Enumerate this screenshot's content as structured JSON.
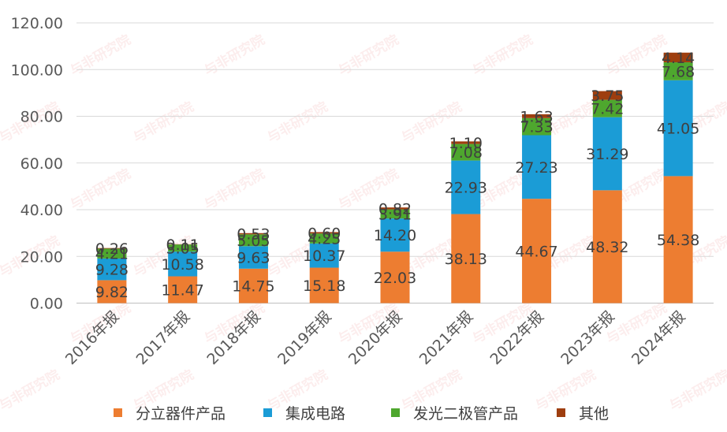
{
  "chart_data": {
    "type": "bar",
    "stacked": true,
    "categories": [
      "2016年报",
      "2017年报",
      "2018年报",
      "2019年报",
      "2020年报",
      "2021年报",
      "2022年报",
      "2023年报",
      "2024年报"
    ],
    "series": [
      {
        "name": "分立器件产品",
        "color": "#ED7D31",
        "values": [
          9.82,
          11.47,
          14.75,
          15.18,
          22.03,
          38.13,
          44.67,
          48.32,
          54.38
        ]
      },
      {
        "name": "集成电路",
        "color": "#1B9CD6",
        "values": [
          9.28,
          10.58,
          9.63,
          10.37,
          14.2,
          22.93,
          27.23,
          31.29,
          41.05
        ]
      },
      {
        "name": "发光二极管产品",
        "color": "#4EA72E",
        "values": [
          4.21,
          3.05,
          5.05,
          4.25,
          3.91,
          7.08,
          7.33,
          7.42,
          7.68
        ]
      },
      {
        "name": "其他",
        "color": "#9E3E0F",
        "values": [
          0.26,
          0.11,
          0.53,
          0.6,
          0.82,
          1.1,
          1.63,
          3.75,
          4.14
        ]
      }
    ],
    "yticks": [
      "0.00",
      "20.00",
      "40.00",
      "60.00",
      "80.00",
      "100.00",
      "120.00"
    ],
    "ylim": [
      0,
      120
    ],
    "grid": true,
    "legend": "bottom",
    "watermark": "与非研究院"
  }
}
